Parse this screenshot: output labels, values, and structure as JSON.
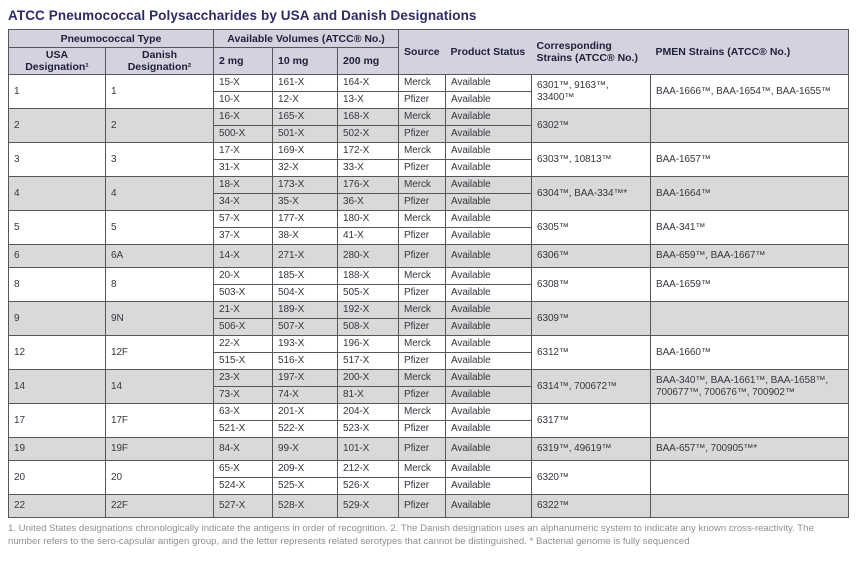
{
  "title": "ATCC Pneumococcal Polysaccharides by USA and Danish Designations",
  "table": {
    "header": {
      "pneumococcal_type": "Pneumococcal Type",
      "usa_designation": "USA Designation¹",
      "danish_designation": "Danish Designation²",
      "available_volumes": "Available Volumes (ATCC® No.)",
      "vol_2mg": "2 mg",
      "vol_10mg": "10 mg",
      "vol_200mg": "200 mg",
      "source": "Source",
      "product_status": "Product Status",
      "corresponding_strains": "Corresponding Strains (ATCC® No.)",
      "pmen_strains": "PMEN Strains (ATCC® No.)"
    },
    "groups": [
      {
        "usa": "1",
        "danish": "1",
        "rows": [
          {
            "v2": "15-X",
            "v10": "161-X",
            "v200": "164-X",
            "source": "Merck",
            "status": "Available"
          },
          {
            "v2": "10-X",
            "v10": "12-X",
            "v200": "13-X",
            "source": "Pfizer",
            "status": "Available"
          }
        ],
        "corresponding": "6301™, 9163™, 33400™",
        "pmen": "BAA-1666™, BAA-1654™, BAA-1655™"
      },
      {
        "usa": "2",
        "danish": "2",
        "rows": [
          {
            "v2": "16-X",
            "v10": "165-X",
            "v200": "168-X",
            "source": "Merck",
            "status": "Available"
          },
          {
            "v2": "500-X",
            "v10": "501-X",
            "v200": "502-X",
            "source": "Pfizer",
            "status": "Available"
          }
        ],
        "corresponding": "6302™",
        "pmen": ""
      },
      {
        "usa": "3",
        "danish": "3",
        "rows": [
          {
            "v2": "17-X",
            "v10": "169-X",
            "v200": "172-X",
            "source": "Merck",
            "status": "Available"
          },
          {
            "v2": "31-X",
            "v10": "32-X",
            "v200": "33-X",
            "source": "Pfizer",
            "status": "Available"
          }
        ],
        "corresponding": "6303™, 10813™",
        "pmen": "BAA-1657™"
      },
      {
        "usa": "4",
        "danish": "4",
        "rows": [
          {
            "v2": "18-X",
            "v10": "173-X",
            "v200": "176-X",
            "source": "Merck",
            "status": "Available"
          },
          {
            "v2": "34-X",
            "v10": "35-X",
            "v200": "36-X",
            "source": "Pfizer",
            "status": "Available"
          }
        ],
        "corresponding": "6304™, BAA-334™*",
        "pmen": "BAA-1664™"
      },
      {
        "usa": "5",
        "danish": "5",
        "rows": [
          {
            "v2": "57-X",
            "v10": "177-X",
            "v200": "180-X",
            "source": "Merck",
            "status": "Available"
          },
          {
            "v2": "37-X",
            "v10": "38-X",
            "v200": "41-X",
            "source": "Pfizer",
            "status": "Available"
          }
        ],
        "corresponding": "6305™",
        "pmen": "BAA-341™"
      },
      {
        "usa": "6",
        "danish": "6A",
        "rows": [
          {
            "v2": "14-X",
            "v10": "271-X",
            "v200": "280-X",
            "source": "Pfizer",
            "status": "Available"
          }
        ],
        "corresponding": "6306™",
        "pmen": "BAA-659™, BAA-1667™"
      },
      {
        "usa": "8",
        "danish": "8",
        "rows": [
          {
            "v2": "20-X",
            "v10": "185-X",
            "v200": "188-X",
            "source": "Merck",
            "status": "Available"
          },
          {
            "v2": "503-X",
            "v10": "504-X",
            "v200": "505-X",
            "source": "Pfizer",
            "status": "Available"
          }
        ],
        "corresponding": "6308™",
        "pmen": "BAA-1659™"
      },
      {
        "usa": "9",
        "danish": "9N",
        "rows": [
          {
            "v2": "21-X",
            "v10": "189-X",
            "v200": "192-X",
            "source": "Merck",
            "status": "Available"
          },
          {
            "v2": "506-X",
            "v10": "507-X",
            "v200": "508-X",
            "source": "Pfizer",
            "status": "Available"
          }
        ],
        "corresponding": "6309™",
        "pmen": ""
      },
      {
        "usa": "12",
        "danish": "12F",
        "rows": [
          {
            "v2": "22-X",
            "v10": "193-X",
            "v200": "196-X",
            "source": "Merck",
            "status": "Available"
          },
          {
            "v2": "515-X",
            "v10": "516-X",
            "v200": "517-X",
            "source": "Pfizer",
            "status": "Available"
          }
        ],
        "corresponding": "6312™",
        "pmen": "BAA-1660™"
      },
      {
        "usa": "14",
        "danish": "14",
        "rows": [
          {
            "v2": "23-X",
            "v10": "197-X",
            "v200": "200-X",
            "source": "Merck",
            "status": "Available"
          },
          {
            "v2": "73-X",
            "v10": "74-X",
            "v200": "81-X",
            "source": "Pfizer",
            "status": "Available"
          }
        ],
        "corresponding": "6314™, 700672™",
        "pmen": "BAA-340™, BAA-1661™, BAA-1658™, 700677™, 700676™, 700902™"
      },
      {
        "usa": "17",
        "danish": "17F",
        "rows": [
          {
            "v2": "63-X",
            "v10": "201-X",
            "v200": "204-X",
            "source": "Merck",
            "status": "Available"
          },
          {
            "v2": "521-X",
            "v10": "522-X",
            "v200": "523-X",
            "source": "Pfizer",
            "status": "Available"
          }
        ],
        "corresponding": "6317™",
        "pmen": ""
      },
      {
        "usa": "19",
        "danish": "19F",
        "rows": [
          {
            "v2": "84-X",
            "v10": "99-X",
            "v200": "101-X",
            "source": "Pfizer",
            "status": "Available"
          }
        ],
        "corresponding": "6319™, 49619™",
        "pmen": "BAA-657™, 700905™*"
      },
      {
        "usa": "20",
        "danish": "20",
        "rows": [
          {
            "v2": "65-X",
            "v10": "209-X",
            "v200": "212-X",
            "source": "Merck",
            "status": "Available"
          },
          {
            "v2": "524-X",
            "v10": "525-X",
            "v200": "526-X",
            "source": "Pfizer",
            "status": "Available"
          }
        ],
        "corresponding": "6320™",
        "pmen": ""
      },
      {
        "usa": "22",
        "danish": "22F",
        "rows": [
          {
            "v2": "527-X",
            "v10": "528-X",
            "v200": "529-X",
            "source": "Pfizer",
            "status": "Available"
          }
        ],
        "corresponding": "6322™",
        "pmen": ""
      }
    ]
  },
  "footnote": "1. United States designations chronologically indicate the antigens in order of recognition. 2. The Danish designation uses an alphanumeric system to indicate any known cross-reactivity. The number refers to the sero-capsular antigen group, and the letter represents related serotypes that cannot be distinguished. * Bacterial genome is fully sequenced",
  "colors": {
    "title": "#2d2b66",
    "header_bg": "#d3d2de",
    "band_gray": "#d9d9d9",
    "border": "#55555c",
    "body_text": "#36363f",
    "footnote_text": "#8f8f8f"
  }
}
